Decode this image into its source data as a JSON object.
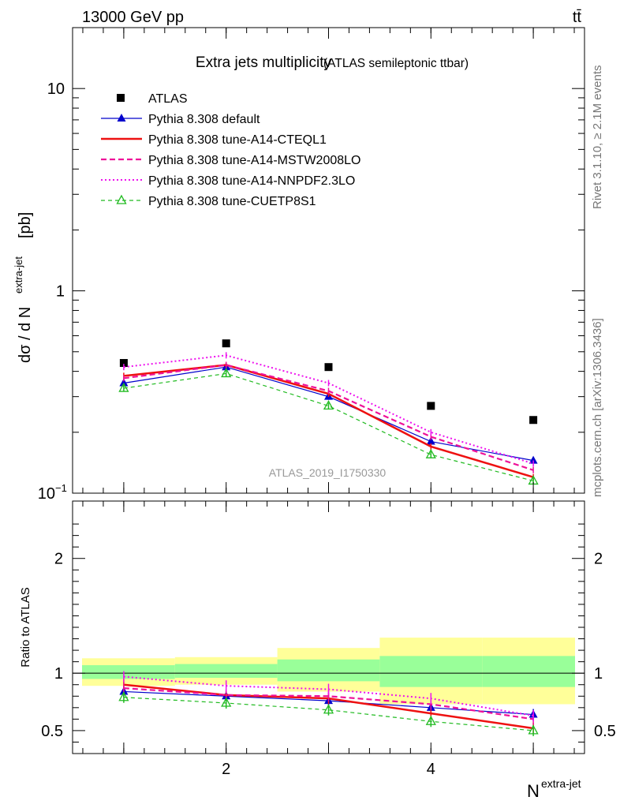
{
  "header": {
    "energy_label": "13000 GeV pp",
    "process_label": "tt̄"
  },
  "side_labels": {
    "rivet": "Rivet 3.1.10, ≥ 2.1M events",
    "source": "mcplots.cern.ch [arXiv:1306.3436]"
  },
  "chart_data": [
    {
      "type": "line",
      "title": "Extra jets multiplicity",
      "subtitle": "(ATLAS semileptonic ttbar)",
      "ylabel_main": "dσ / d N",
      "ylabel_sup": "extra-jet",
      "ylabel_unit": "[pb]",
      "yscale": "log",
      "ylim": [
        0.1,
        20
      ],
      "xlim": [
        0.5,
        5.5
      ],
      "ytick_labels": [
        {
          "value": 0.1,
          "base": "10",
          "sup": "−1"
        },
        {
          "value": 1,
          "base": "1",
          "sup": ""
        },
        {
          "value": 10,
          "base": "10",
          "sup": ""
        }
      ],
      "analysis_label": "ATLAS_2019_I1750330",
      "legend_position": "top-left",
      "x": [
        1,
        2,
        3,
        4,
        5
      ],
      "series": [
        {
          "name": "ATLAS",
          "color": "#000000",
          "style": "markers",
          "marker": "square",
          "values": [
            0.44,
            0.55,
            0.42,
            0.27,
            0.23
          ]
        },
        {
          "name": "Pythia 8.308 default",
          "color": "#0000cc",
          "style": "solid-thin",
          "marker": "triangle-filled",
          "values": [
            0.35,
            0.42,
            0.3,
            0.18,
            0.145
          ]
        },
        {
          "name": "Pythia 8.308 tune-A14-CTEQL1",
          "color": "#ee1111",
          "style": "solid-thick",
          "marker": "none",
          "values": [
            0.38,
            0.43,
            0.31,
            0.17,
            0.12
          ]
        },
        {
          "name": "Pythia 8.308 tune-A14-MSTW2008LO",
          "color": "#ee1199",
          "style": "dashed",
          "marker": "none",
          "values": [
            0.37,
            0.43,
            0.32,
            0.19,
            0.13
          ]
        },
        {
          "name": "Pythia 8.308 tune-A14-NNPDF2.3LO",
          "color": "#ee11ee",
          "style": "dotted",
          "marker": "none",
          "values": [
            0.42,
            0.48,
            0.35,
            0.2,
            0.14
          ]
        },
        {
          "name": "Pythia 8.308 tune-CUETP8S1",
          "color": "#22bb22",
          "style": "dashed-thin",
          "marker": "triangle-open",
          "values": [
            0.33,
            0.39,
            0.27,
            0.155,
            0.115
          ]
        }
      ]
    },
    {
      "type": "line",
      "ylabel": "Ratio to ATLAS",
      "xlabel_main": "N",
      "xlabel_sup": "extra-jet",
      "ylim": [
        0.3,
        2.5
      ],
      "xlim": [
        0.5,
        5.5
      ],
      "ytick_labels": [
        "0.5",
        "1",
        "2"
      ],
      "ytick_values": [
        0.5,
        1,
        2
      ],
      "xtick_labels": [
        "2",
        "4"
      ],
      "xtick_values": [
        2,
        4
      ],
      "bands": {
        "bins": [
          [
            0.5,
            1.5
          ],
          [
            1.5,
            2.5
          ],
          [
            2.5,
            3.5
          ],
          [
            3.5,
            4.5
          ],
          [
            4.5,
            5.5
          ]
        ],
        "stat": [
          [
            0.95,
            1.07
          ],
          [
            0.96,
            1.08
          ],
          [
            0.93,
            1.12
          ],
          [
            0.88,
            1.15
          ],
          [
            0.88,
            1.15
          ]
        ],
        "total": [
          [
            0.89,
            1.13
          ],
          [
            0.9,
            1.14
          ],
          [
            0.84,
            1.22
          ],
          [
            0.73,
            1.31
          ],
          [
            0.73,
            1.31
          ]
        ],
        "stat_color": "#99ff99",
        "total_color": "#ffff99"
      },
      "x": [
        1,
        2,
        3,
        4,
        5
      ],
      "series": [
        {
          "name": "Pythia 8.308 default",
          "color": "#0000cc",
          "values": [
            0.84,
            0.8,
            0.76,
            0.7,
            0.64
          ]
        },
        {
          "name": "Pythia 8.308 tune-A14-CTEQL1",
          "color": "#ee1111",
          "values": [
            0.9,
            0.81,
            0.78,
            0.65,
            0.52
          ]
        },
        {
          "name": "Pythia 8.308 tune-A14-MSTW2008LO",
          "color": "#ee1199",
          "values": [
            0.87,
            0.81,
            0.8,
            0.73,
            0.6
          ]
        },
        {
          "name": "Pythia 8.308 tune-A14-NNPDF2.3LO",
          "color": "#ee11ee",
          "values": [
            0.97,
            0.89,
            0.86,
            0.78,
            0.63
          ]
        },
        {
          "name": "Pythia 8.308 tune-CUETP8S1",
          "color": "#22bb22",
          "values": [
            0.79,
            0.74,
            0.68,
            0.58,
            0.5
          ]
        }
      ]
    }
  ]
}
